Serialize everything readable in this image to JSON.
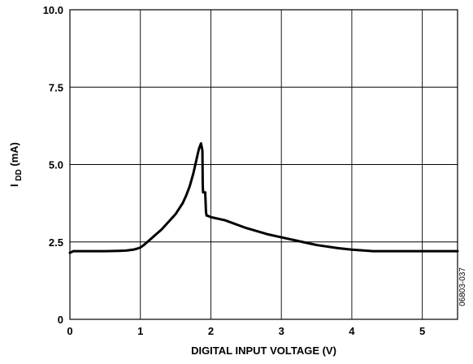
{
  "chart_data": {
    "type": "line",
    "xlabel": "DIGITAL INPUT VOLTAGE (V)",
    "ylabel_main": "I",
    "ylabel_sub": "DD",
    "ylabel_unit": " (mA)",
    "xlim": [
      0,
      5.5
    ],
    "ylim": [
      0,
      10
    ],
    "x_ticks": [
      0,
      1,
      2,
      3,
      4,
      5
    ],
    "x_tick_labels": [
      "0",
      "1",
      "2",
      "3",
      "4",
      "5"
    ],
    "y_ticks": [
      0,
      2.5,
      5.0,
      7.5,
      10.0
    ],
    "y_tick_labels": [
      "0",
      "2.5",
      "5.0",
      "7.5",
      "10.0"
    ],
    "grid": true,
    "figure_code": "06803-037",
    "series": [
      {
        "color": "#000000",
        "x": [
          0.0,
          0.05,
          0.1,
          0.3,
          0.5,
          0.7,
          0.8,
          0.9,
          0.95,
          1.0,
          1.05,
          1.1,
          1.2,
          1.3,
          1.4,
          1.5,
          1.6,
          1.65,
          1.7,
          1.75,
          1.8,
          1.83,
          1.86,
          1.88,
          1.885,
          1.89,
          1.9,
          1.91,
          1.92,
          1.93,
          1.935,
          1.94,
          1.95,
          2.0,
          2.2,
          2.5,
          2.8,
          3.0,
          3.2,
          3.5,
          3.8,
          4.0,
          4.3,
          4.5,
          5.0,
          5.5
        ],
        "y": [
          2.15,
          2.2,
          2.2,
          2.2,
          2.2,
          2.21,
          2.22,
          2.25,
          2.28,
          2.32,
          2.4,
          2.5,
          2.7,
          2.9,
          3.15,
          3.4,
          3.75,
          4.0,
          4.3,
          4.7,
          5.2,
          5.5,
          5.68,
          5.45,
          4.3,
          4.1,
          4.1,
          4.1,
          4.1,
          3.5,
          3.4,
          3.35,
          3.35,
          3.3,
          3.2,
          2.95,
          2.75,
          2.65,
          2.55,
          2.4,
          2.3,
          2.25,
          2.2,
          2.2,
          2.2,
          2.2
        ]
      }
    ]
  }
}
